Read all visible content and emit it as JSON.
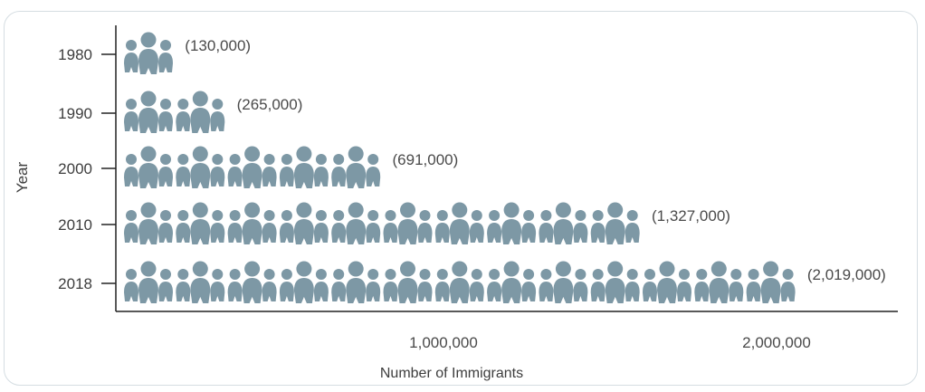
{
  "chart_data": {
    "type": "bar",
    "style": "pictogram",
    "categories": [
      "1980",
      "1990",
      "2000",
      "2010",
      "2018"
    ],
    "values": [
      130000,
      265000,
      691000,
      1327000,
      2019000
    ],
    "value_labels": [
      "(130,000)",
      "(265,000)",
      "(691,000)",
      "(1,327,000)",
      "(2,019,000)"
    ],
    "icon_groups": [
      1,
      2,
      5,
      10,
      13
    ],
    "xlabel": "Number of Immigrants",
    "ylabel": "Year",
    "xticks": [
      1000000,
      2000000
    ],
    "xtick_labels": [
      "1,000,000",
      "2,000,000"
    ],
    "xlim": [
      0,
      2350000
    ],
    "orientation": "horizontal",
    "icon_color": "#7d98a5",
    "grid": false
  }
}
